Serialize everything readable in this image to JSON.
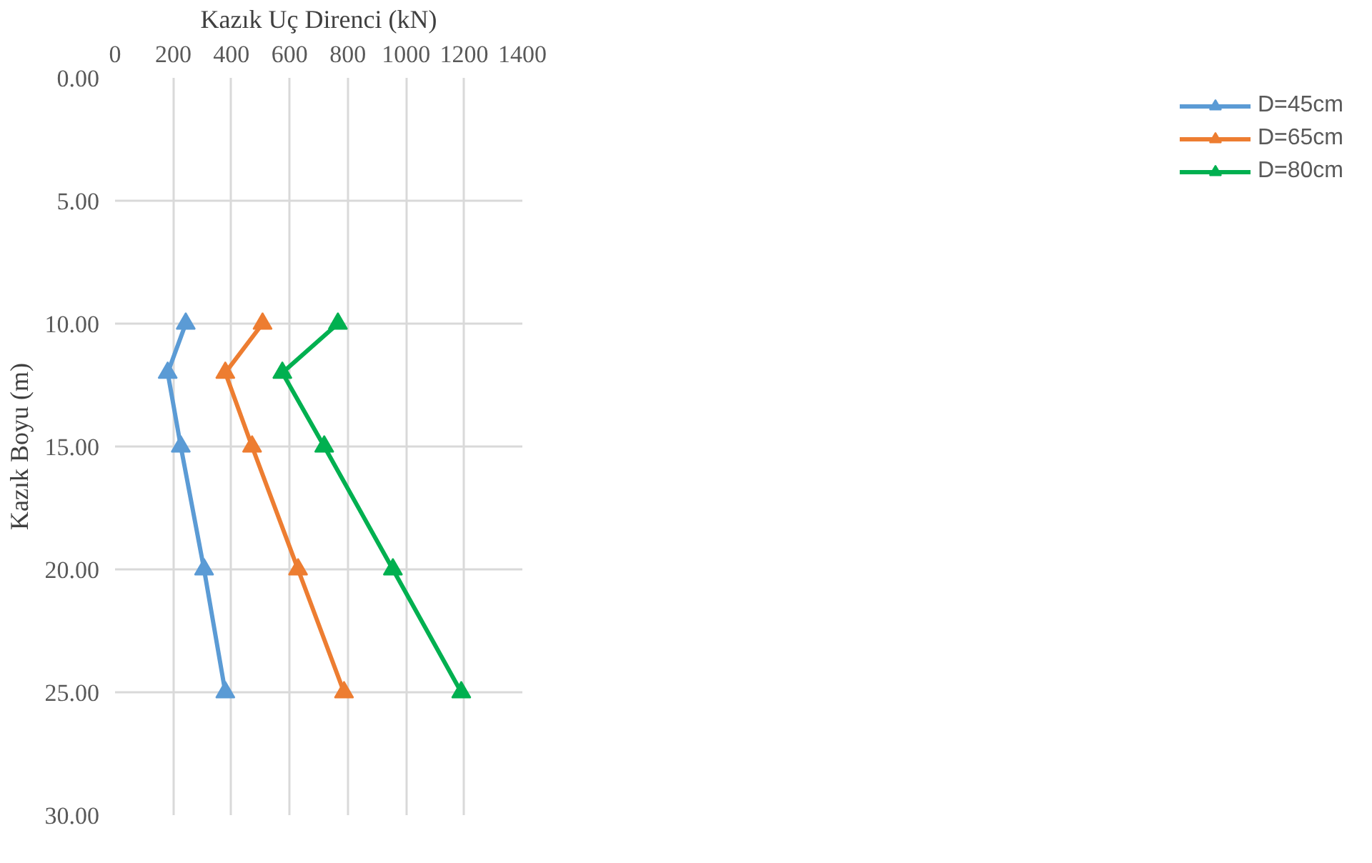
{
  "chart_data": {
    "type": "line",
    "xlabel": "Kazık Uç Direnci (kN)",
    "ylabel": "Kazık Boyu (m)",
    "xlim": [
      0,
      1400
    ],
    "xticks": [
      0,
      200,
      400,
      600,
      800,
      1000,
      1200,
      1400
    ],
    "ylim": [
      30,
      0
    ],
    "yticks": [
      {
        "value": 0,
        "label": "0.00"
      },
      {
        "value": 5,
        "label": "5.00"
      },
      {
        "value": 10,
        "label": "10.00"
      },
      {
        "value": 15,
        "label": "15.00"
      },
      {
        "value": 20,
        "label": "20.00"
      },
      {
        "value": 25,
        "label": "25.00"
      },
      {
        "value": 30,
        "label": "30.00"
      }
    ],
    "series": [
      {
        "name": "D=45cm",
        "color": "#5b9bd5",
        "x": [
          243,
          181,
          226,
          306,
          379
        ],
        "values": [
          10,
          12,
          15,
          20,
          25
        ]
      },
      {
        "name": "D=65cm",
        "color": "#ed7d31",
        "x": [
          507,
          379,
          471,
          629,
          787
        ],
        "values": [
          10,
          12,
          15,
          20,
          25
        ]
      },
      {
        "name": "D=80cm",
        "color": "#00b050",
        "x": [
          766,
          575,
          719,
          955,
          1190
        ],
        "values": [
          10,
          12,
          15,
          20,
          25
        ]
      }
    ],
    "grid": true,
    "legend": "right",
    "marker": "triangle",
    "line_style": "solid"
  }
}
